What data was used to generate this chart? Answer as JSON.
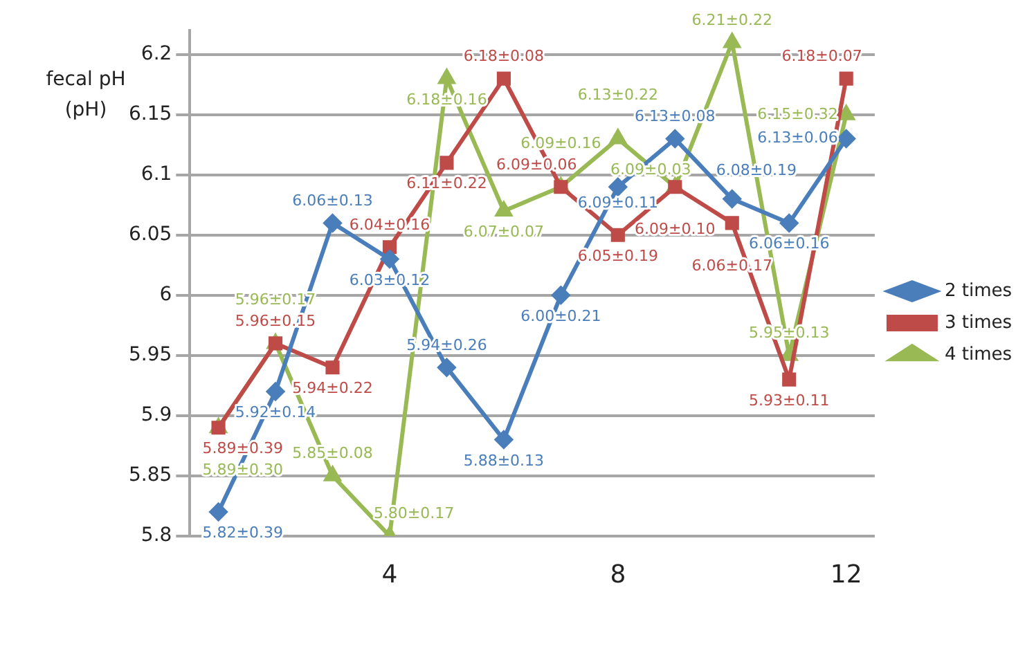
{
  "chart_data": {
    "type": "line",
    "ylabel": "fecal pH\n(pH)",
    "categories": [
      null,
      null,
      null,
      "4",
      null,
      null,
      null,
      "8",
      null,
      null,
      null,
      "12"
    ],
    "ylim": [
      5.8,
      6.22
    ],
    "yticks": [
      5.8,
      5.85,
      5.9,
      5.95,
      6,
      6.05,
      6.1,
      6.15,
      6.2
    ],
    "grid": "y",
    "legend": "right",
    "series": [
      {
        "name": "2 times",
        "color": "#4a7ebb",
        "marker": "diamond",
        "values": [
          5.82,
          5.92,
          6.06,
          6.03,
          5.94,
          5.88,
          6.0,
          6.09,
          6.13,
          6.08,
          6.06,
          6.13
        ],
        "value_labels": [
          "5.82±0.39",
          "5.92±0.14",
          "6.06±0.13",
          "6.03±0.12",
          "5.94±0.26",
          "5.88±0.13",
          "6.00±0.21",
          "6.09±0.11",
          "6.13±0.08",
          "6.08±0.19",
          "6.06±0.16",
          "6.13±0.06"
        ]
      },
      {
        "name": "3 times",
        "color": "#be4b48",
        "marker": "square",
        "values": [
          5.89,
          5.96,
          5.94,
          6.04,
          6.11,
          6.18,
          6.09,
          6.05,
          6.09,
          6.06,
          5.93,
          6.18
        ],
        "value_labels": [
          "5.89±0.39",
          "5.96±0.15",
          "5.94±0.22",
          "6.04±0.16",
          "6.11±0.22",
          "6.18±0.08",
          "6.09±0.06",
          "6.05±0.19",
          "6.09±0.10",
          "6.06±0.17",
          "5.93±0.11",
          "6.18±0.07"
        ]
      },
      {
        "name": "4 times",
        "color": "#98b954",
        "marker": "triangle",
        "values": [
          5.89,
          5.96,
          5.85,
          5.8,
          6.18,
          6.07,
          6.09,
          6.13,
          6.09,
          6.21,
          5.95,
          6.15
        ],
        "value_labels": [
          "5.89±0.30",
          "5.96±0.17",
          "5.85±0.08",
          "5.80±0.17",
          "6.18±0.16",
          "6.07±0.07",
          "6.09±0.16",
          "6.13±0.22",
          "6.09±0.03",
          "6.21±0.22",
          "5.95±0.13",
          "6.15±0.32"
        ]
      }
    ]
  }
}
